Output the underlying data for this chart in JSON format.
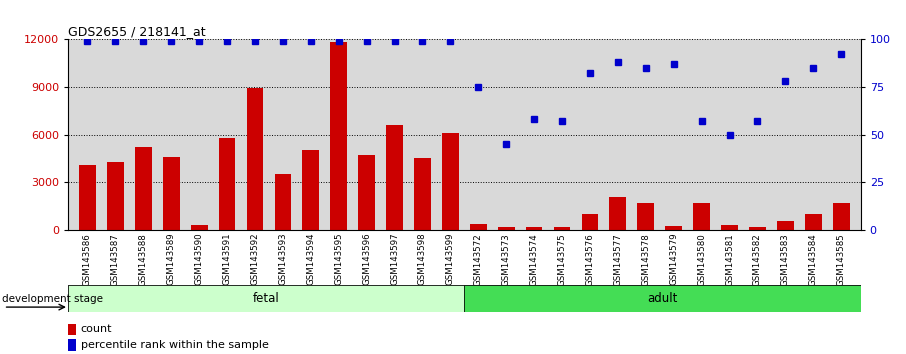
{
  "title": "GDS2655 / 218141_at",
  "categories": [
    "GSM143586",
    "GSM143587",
    "GSM143588",
    "GSM143589",
    "GSM143590",
    "GSM143591",
    "GSM143592",
    "GSM143593",
    "GSM143594",
    "GSM143595",
    "GSM143596",
    "GSM143597",
    "GSM143598",
    "GSM143599",
    "GSM143572",
    "GSM143573",
    "GSM143574",
    "GSM143575",
    "GSM143576",
    "GSM143577",
    "GSM143578",
    "GSM143579",
    "GSM143580",
    "GSM143581",
    "GSM143582",
    "GSM143583",
    "GSM143584",
    "GSM143585"
  ],
  "counts": [
    4100,
    4300,
    5200,
    4600,
    300,
    5800,
    8900,
    3500,
    5000,
    11800,
    4700,
    6600,
    4500,
    6100,
    400,
    200,
    200,
    200,
    1000,
    2100,
    1700,
    250,
    1700,
    300,
    200,
    600,
    1000,
    1700
  ],
  "percentiles": [
    99,
    99,
    99,
    99,
    99,
    99,
    99,
    99,
    99,
    99,
    99,
    99,
    99,
    99,
    75,
    45,
    58,
    57,
    82,
    88,
    85,
    87,
    57,
    50,
    57,
    78,
    85,
    92
  ],
  "fetal_count": 14,
  "adult_count": 14,
  "bar_color": "#cc0000",
  "dot_color": "#0000cc",
  "fetal_color": "#ccffcc",
  "adult_color": "#44dd55",
  "bar_bg": "#d9d9d9",
  "fig_bg": "#ffffff",
  "ylim_left": [
    0,
    12000
  ],
  "ylim_right": [
    0,
    100
  ],
  "yticks_left": [
    0,
    3000,
    6000,
    9000,
    12000
  ],
  "yticks_right": [
    0,
    25,
    50,
    75,
    100
  ],
  "left_tick_color": "#cc0000",
  "right_tick_color": "#0000cc"
}
